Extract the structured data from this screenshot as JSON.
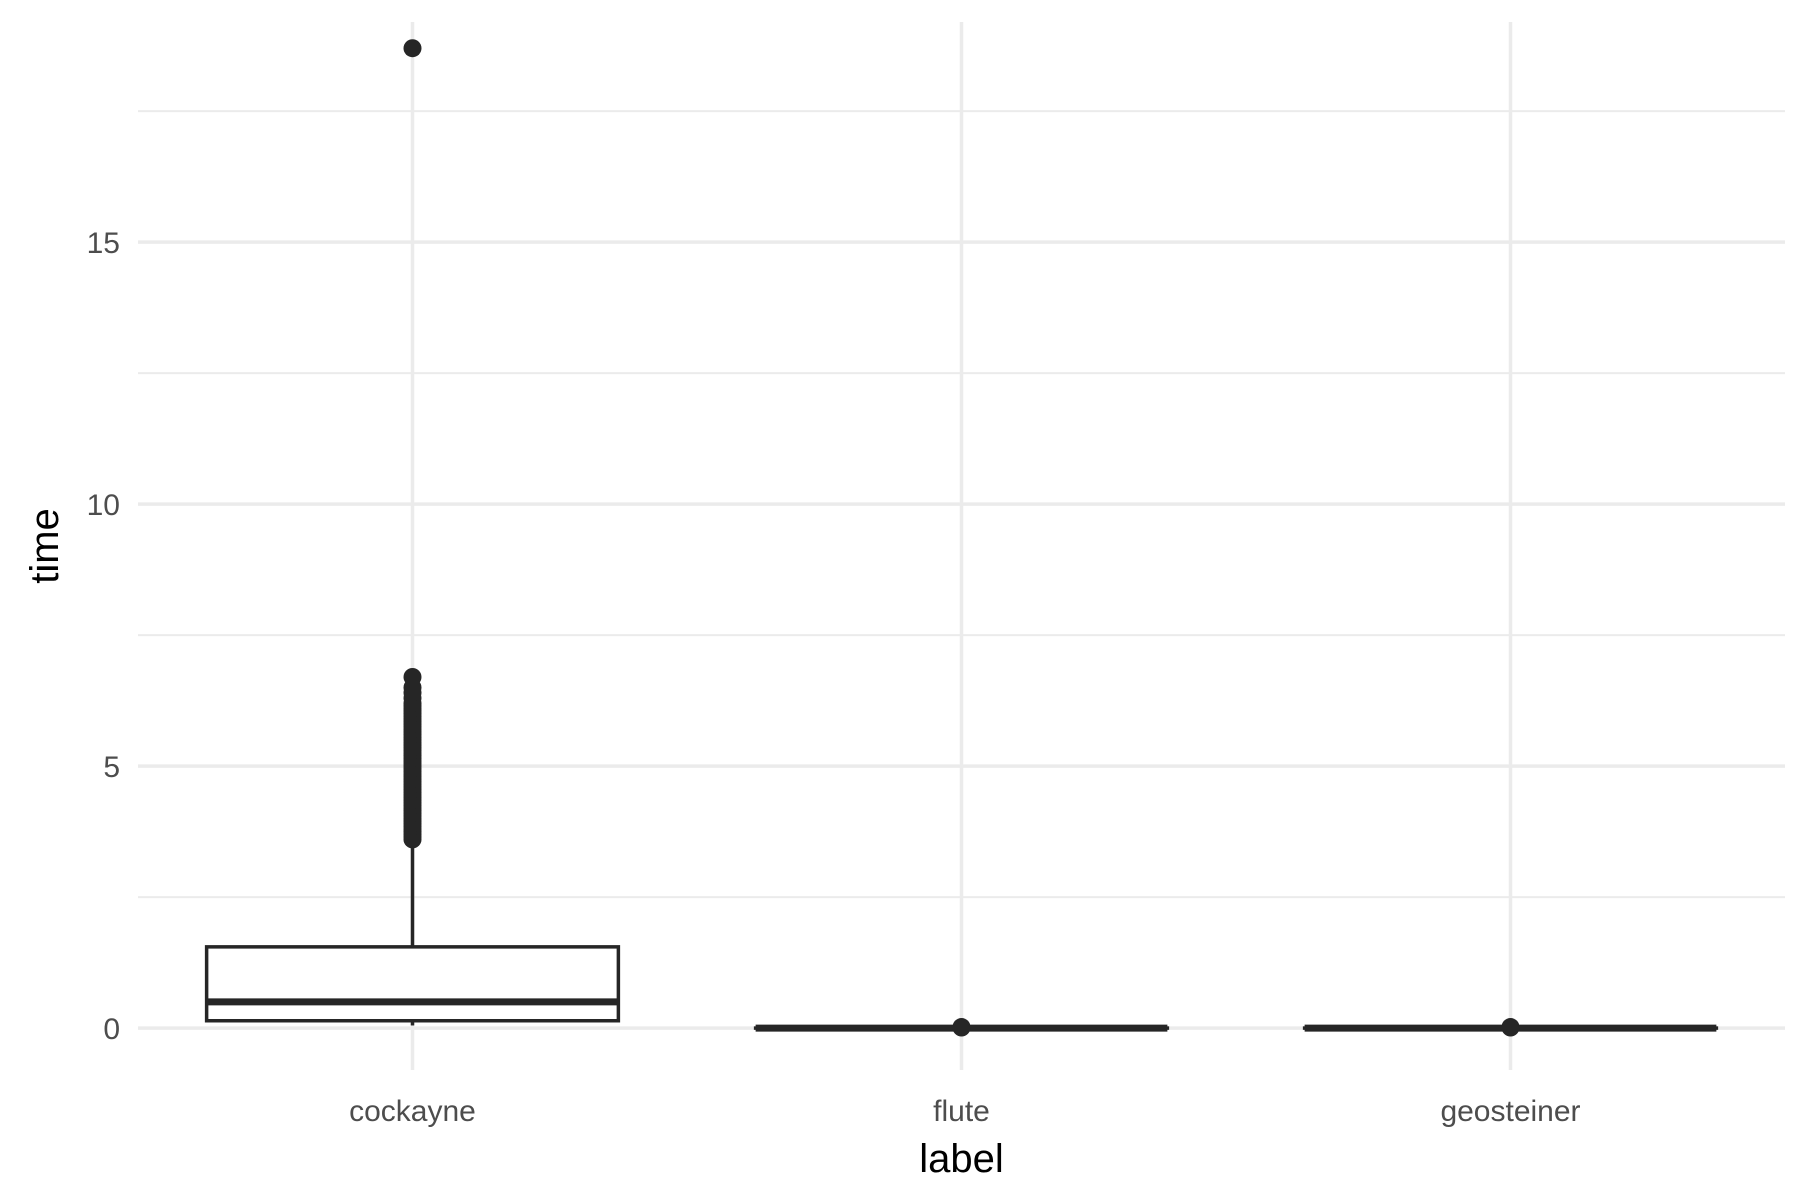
{
  "chart_data": {
    "type": "box",
    "xlabel": "label",
    "ylabel": "time",
    "ylim": [
      -0.8,
      19.2
    ],
    "yticks": [
      0,
      5,
      10,
      15
    ],
    "y_minor_ticks": [
      2.5,
      7.5,
      12.5,
      17.5
    ],
    "grid": true,
    "legend": "none",
    "colors": {
      "box_stroke": "#262626",
      "grid": "#ebebeb",
      "tick_text": "#4d4d4d",
      "title_text": "#000000"
    },
    "categories": [
      "cockayne",
      "flute",
      "geosteiner"
    ],
    "boxes": [
      {
        "category": "cockayne",
        "lower_whisker": 0.05,
        "q1": 0.14,
        "median": 0.5,
        "q3": 1.55,
        "upper_whisker": 3.6,
        "outliers": [
          3.6,
          3.65,
          3.7,
          3.75,
          3.8,
          3.85,
          3.9,
          3.95,
          4.0,
          4.05,
          4.1,
          4.15,
          4.2,
          4.25,
          4.3,
          4.35,
          4.4,
          4.45,
          4.5,
          4.55,
          4.6,
          4.65,
          4.7,
          4.75,
          4.8,
          4.85,
          4.9,
          4.95,
          5.0,
          5.05,
          5.1,
          5.15,
          5.2,
          5.25,
          5.3,
          5.35,
          5.4,
          5.45,
          5.5,
          5.55,
          5.6,
          5.65,
          5.7,
          5.75,
          5.8,
          5.85,
          5.9,
          5.95,
          6.0,
          6.05,
          6.1,
          6.15,
          6.2,
          6.3,
          6.4,
          6.5,
          6.7,
          18.7
        ]
      },
      {
        "category": "flute",
        "lower_whisker": 0,
        "q1": 0,
        "median": 0,
        "q3": 0,
        "upper_whisker": 0,
        "outliers": [
          0.01,
          0.02
        ]
      },
      {
        "category": "geosteiner",
        "lower_whisker": 0,
        "q1": 0,
        "median": 0,
        "q3": 0,
        "upper_whisker": 0,
        "outliers": [
          0.01,
          0.02
        ]
      }
    ]
  }
}
